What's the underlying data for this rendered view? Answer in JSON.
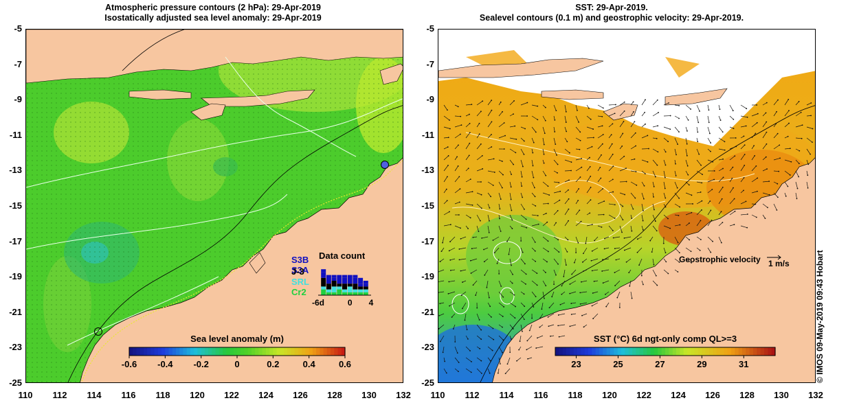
{
  "left_panel": {
    "title_line1": "Atmospheric pressure contours (2 hPa): 29-Apr-2019",
    "title_line2": "Isostatically adjusted sea level anomaly: 29-Apr-2019",
    "colorbar": {
      "title": "Sea level anomaly (m)",
      "ticks": [
        "-0.6",
        "-0.4",
        "-0.2",
        "0",
        "0.2",
        "0.4",
        "0.6"
      ],
      "range": [
        -0.6,
        0.6
      ]
    },
    "data_count": {
      "title": "Data count",
      "satellites": [
        "S3B",
        "S3A",
        "J-3",
        "SRL",
        "Cr2"
      ],
      "satellite_colors": [
        "#1010c0",
        "#1010c0",
        "#000000",
        "#40e0e0",
        "#20d040"
      ],
      "axis_ticks": [
        "-6d",
        "0",
        "4"
      ],
      "axis_range": [
        -6,
        4
      ],
      "bars": [
        {
          "day": -5,
          "S3B": 1,
          "S3A": 2,
          "J-3": 3,
          "SRL": 1,
          "Cr2": 2
        },
        {
          "day": -4,
          "S3B": 2,
          "S3A": 1,
          "J-3": 2,
          "SRL": 1,
          "Cr2": 1
        },
        {
          "day": -3,
          "S3B": 1,
          "S3A": 1,
          "J-3": 2,
          "SRL": 2,
          "Cr2": 1
        },
        {
          "day": -2,
          "S3B": 2,
          "S3A": 1,
          "J-3": 1,
          "SRL": 1,
          "Cr2": 2
        },
        {
          "day": -1,
          "S3B": 1,
          "S3A": 2,
          "J-3": 2,
          "SRL": 1,
          "Cr2": 1
        },
        {
          "day": 0,
          "S3B": 2,
          "S3A": 1,
          "J-3": 1,
          "SRL": 2,
          "Cr2": 1
        },
        {
          "day": 1,
          "S3B": 1,
          "S3A": 2,
          "J-3": 2,
          "SRL": 1,
          "Cr2": 1
        },
        {
          "day": 2,
          "S3B": 2,
          "S3A": 1,
          "J-3": 1,
          "SRL": 1,
          "Cr2": 1
        },
        {
          "day": 3,
          "S3B": 1,
          "S3A": 1,
          "J-3": 1,
          "SRL": 1,
          "Cr2": 1
        }
      ]
    }
  },
  "right_panel": {
    "title_line1": "SST: 29-Apr-2019.",
    "title_line2": "Sealevel contours (0.1 m) and geostrophic velocity: 29-Apr-2019.",
    "colorbar": {
      "title": "SST (°C) 6d ngt-only comp QL>=3",
      "ticks": [
        "23",
        "25",
        "27",
        "29",
        "31"
      ],
      "range": [
        22,
        32.5
      ]
    },
    "velocity_legend": {
      "label": "Geostrophic velocity",
      "scale_label": "1 m/s"
    }
  },
  "axes": {
    "lat_ticks": [
      "-5",
      "-7",
      "-9",
      "-11",
      "-13",
      "-15",
      "-17",
      "-19",
      "-21",
      "-23",
      "-25"
    ],
    "lon_ticks": [
      "110",
      "112",
      "114",
      "116",
      "118",
      "120",
      "122",
      "124",
      "126",
      "128",
      "130",
      "132"
    ],
    "lat_range": [
      -25,
      -5
    ],
    "lon_range": [
      110,
      132
    ]
  },
  "credit": "© IMOS 09-May-2019 09:43 Hobart",
  "colors": {
    "land": "#f7c6a0",
    "ocean_left": "#4ccc2c",
    "ocean_right": "#f2a814"
  }
}
